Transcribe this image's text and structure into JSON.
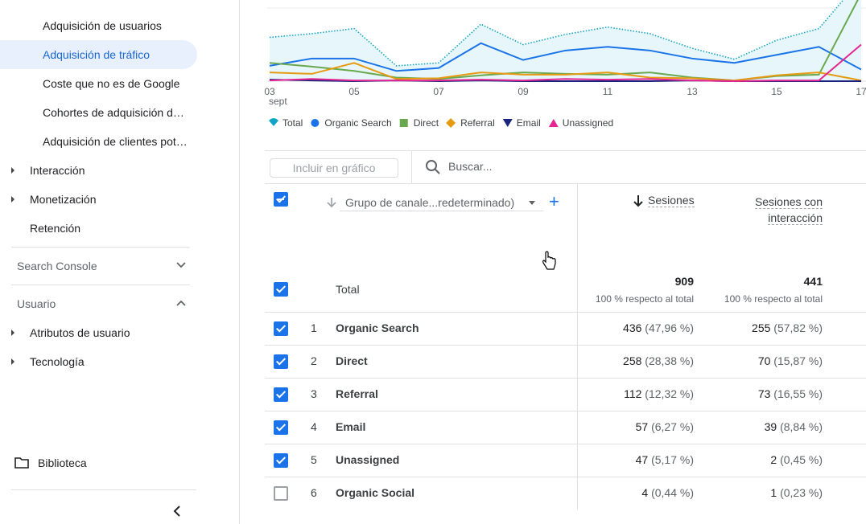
{
  "sidebar": {
    "items": [
      "Adquisición de usuarios",
      "Adquisición de tráfico",
      "Coste que no es de Google",
      "Cohortes de adquisición d…",
      "Adquisición de clientes pot…"
    ],
    "groups": [
      "Interacción",
      "Monetización",
      "Retención"
    ],
    "sections": [
      "Search Console",
      "Usuario"
    ],
    "user_items": [
      "Atributos de usuario",
      "Tecnología"
    ],
    "library": "Biblioteca"
  },
  "chart_data": {
    "type": "line",
    "categories": [
      "03",
      null,
      "05",
      null,
      "07",
      null,
      "09",
      null,
      "11",
      null,
      "13",
      null,
      "15",
      null,
      "17"
    ],
    "x_sublabel": "sept",
    "ylim": [
      0,
      110
    ],
    "series": [
      {
        "name": "Total",
        "color": "#12a4c4",
        "values": [
          60,
          65,
          72,
          21,
          25,
          78,
          50,
          64,
          74,
          65,
          45,
          30,
          56,
          72,
          140
        ]
      },
      {
        "name": "Organic Search",
        "color": "#1a73e8",
        "values": [
          21,
          31,
          31,
          14,
          18,
          52,
          29,
          42,
          47,
          42,
          31,
          25,
          36,
          47,
          16
        ]
      },
      {
        "name": "Direct",
        "color": "#6aa84f",
        "values": [
          25,
          20,
          14,
          5,
          3,
          8,
          12,
          10,
          9,
          12,
          5,
          1,
          7,
          9,
          120
        ]
      },
      {
        "name": "Referral",
        "color": "#e69a12",
        "values": [
          12,
          10,
          25,
          3,
          4,
          12,
          9,
          9,
          12,
          5,
          4,
          1,
          8,
          12,
          1
        ]
      },
      {
        "name": "Email",
        "color": "#1a237e",
        "values": [
          2,
          1,
          0,
          1,
          0,
          1,
          0,
          0,
          0,
          0,
          1,
          0,
          0,
          0,
          0
        ]
      },
      {
        "name": "Unassigned",
        "color": "#e52592",
        "values": [
          1,
          3,
          1,
          1,
          1,
          2,
          1,
          3,
          2,
          3,
          1,
          0,
          1,
          1,
          50
        ]
      }
    ]
  },
  "toolbar": {
    "include": "Incluir en gráfico",
    "search": "Buscar..."
  },
  "table": {
    "dimension": "Grupo de canale...redeterminado)",
    "columns": [
      [
        "Sesiones"
      ],
      [
        "Sesiones con",
        "interacción"
      ]
    ],
    "total_label": "Total",
    "totals": [
      909,
      441
    ],
    "total_note": "100 % respecto al total",
    "rows": [
      {
        "rank": 1,
        "name": "Organic Search",
        "values": [
          436,
          255
        ],
        "value_labels": [
          "(47,96 %)",
          "(57,82 %)"
        ],
        "checked": true
      },
      {
        "rank": 2,
        "name": "Direct",
        "values": [
          258,
          70
        ],
        "value_labels": [
          "(28,38 %)",
          "(15,87 %)"
        ],
        "checked": true
      },
      {
        "rank": 3,
        "name": "Referral",
        "values": [
          112,
          73
        ],
        "value_labels": [
          "(12,32 %)",
          "(16,55 %)"
        ],
        "checked": true
      },
      {
        "rank": 4,
        "name": "Email",
        "values": [
          57,
          39
        ],
        "value_labels": [
          "(6,27 %)",
          "(8,84 %)"
        ],
        "checked": true
      },
      {
        "rank": 5,
        "name": "Unassigned",
        "values": [
          47,
          2
        ],
        "value_labels": [
          "(5,17 %)",
          "(0,45 %)"
        ],
        "checked": true
      },
      {
        "rank": 6,
        "name": "Organic Social",
        "values": [
          4,
          1
        ],
        "value_labels": [
          "(0,44 %)",
          "(0,23 %)"
        ],
        "checked": false
      }
    ]
  }
}
